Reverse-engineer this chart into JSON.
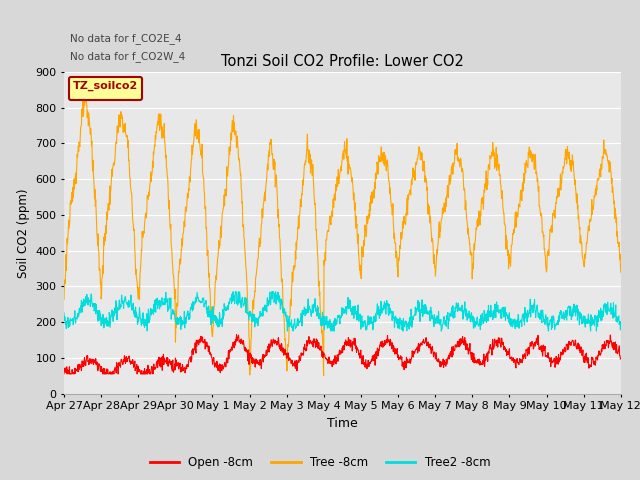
{
  "title": "Tonzi Soil CO2 Profile: Lower CO2",
  "ylabel": "Soil CO2 (ppm)",
  "xlabel": "Time",
  "annotations": [
    "No data for f_CO2E_4",
    "No data for f_CO2W_4"
  ],
  "legend_label": "TZ_soilco2",
  "series_labels": [
    "Open -8cm",
    "Tree -8cm",
    "Tree2 -8cm"
  ],
  "series_colors": [
    "#ff0000",
    "#ffa500",
    "#00dddd"
  ],
  "ylim": [
    0,
    900
  ],
  "yticks": [
    0,
    100,
    200,
    300,
    400,
    500,
    600,
    700,
    800,
    900
  ],
  "xtick_labels": [
    "Apr 27",
    "Apr 28",
    "Apr 29",
    "Apr 30",
    "May 1",
    "May 2",
    "May 3",
    "May 4",
    "May 5",
    "May 6",
    "May 7",
    "May 8",
    "May 9",
    "May 10",
    "May 11",
    "May 12"
  ],
  "bg_color": "#d8d8d8",
  "plot_bg_color": "#e8e8e8",
  "linewidth": 0.8
}
